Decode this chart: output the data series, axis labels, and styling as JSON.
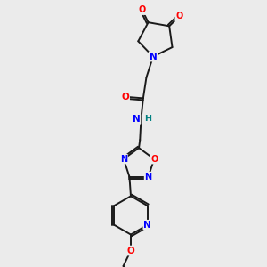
{
  "background_color": "#ebebeb",
  "bond_color": "#1a1a1a",
  "atom_colors": {
    "N": "#0000ff",
    "O": "#ff0000",
    "H": "#008080",
    "C": "#1a1a1a"
  },
  "lw": 1.4
}
